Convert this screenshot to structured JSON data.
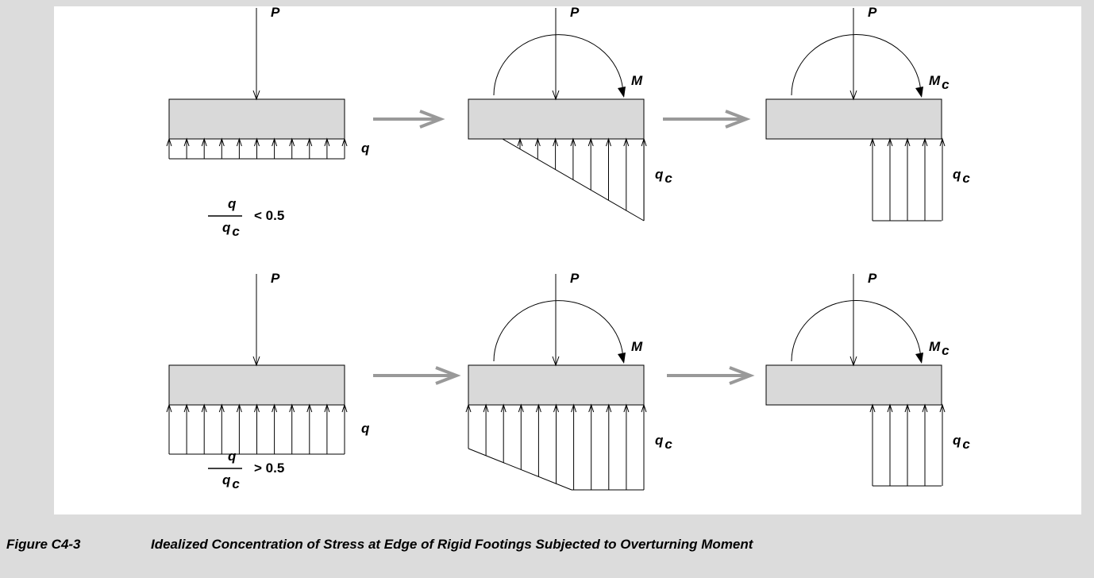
{
  "rows": [
    {
      "panels": [
        {
          "load": "P",
          "pressure": "q"
        },
        {
          "load": "P",
          "moment": "M",
          "pressure": "q",
          "pressure_sub": "c"
        },
        {
          "load": "P",
          "moment": "M",
          "moment_sub": "c",
          "pressure": "q",
          "pressure_sub": "c"
        }
      ],
      "ratio": {
        "numerator": "q",
        "denominator": "q",
        "denominator_sub": "c",
        "comparison": "< 0.5"
      }
    },
    {
      "panels": [
        {
          "load": "P",
          "pressure": "q"
        },
        {
          "load": "P",
          "moment": "M",
          "pressure": "q",
          "pressure_sub": "c"
        },
        {
          "load": "P",
          "moment": "M",
          "moment_sub": "c",
          "pressure": "q",
          "pressure_sub": "c"
        }
      ],
      "ratio": {
        "numerator": "q",
        "denominator": "q",
        "denominator_sub": "c",
        "comparison": "> 0.5"
      }
    }
  ],
  "caption": {
    "label": "Figure C4-3",
    "text": "Idealized Concentration of Stress at Edge of Rigid Footings Subjected to Overturning Moment"
  }
}
